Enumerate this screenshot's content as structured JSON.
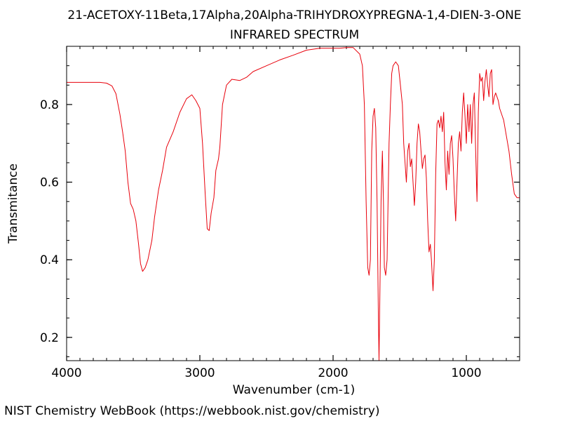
{
  "chart_data": {
    "type": "line",
    "title": "21-ACETOXY-11Beta,17Alpha,20Alpha-TRIHYDROXYPREGNA-1,4-DIEN-3-ONE",
    "subtitle": "INFRARED SPECTRUM",
    "xlabel": "Wavenumber (cm-1)",
    "ylabel": "Transmitance",
    "xlim": [
      4000,
      600
    ],
    "ylim": [
      0.14,
      0.95
    ],
    "x_ticks": [
      4000,
      3000,
      2000,
      1000
    ],
    "x_tick_labels": [
      "4000",
      "3000",
      "2000",
      "1000"
    ],
    "y_ticks": [
      0.2,
      0.4,
      0.6,
      0.8
    ],
    "y_tick_labels": [
      "0.2",
      "0.4",
      "0.6",
      "0.8"
    ],
    "grid": false,
    "line_color": "#e8000b",
    "series": [
      {
        "points": [
          [
            4000,
            0.857
          ],
          [
            3900,
            0.857
          ],
          [
            3800,
            0.857
          ],
          [
            3750,
            0.857
          ],
          [
            3700,
            0.855
          ],
          [
            3660,
            0.848
          ],
          [
            3630,
            0.828
          ],
          [
            3600,
            0.775
          ],
          [
            3580,
            0.73
          ],
          [
            3560,
            0.68
          ],
          [
            3540,
            0.6
          ],
          [
            3520,
            0.545
          ],
          [
            3500,
            0.53
          ],
          [
            3480,
            0.5
          ],
          [
            3460,
            0.44
          ],
          [
            3445,
            0.39
          ],
          [
            3430,
            0.37
          ],
          [
            3410,
            0.38
          ],
          [
            3390,
            0.4
          ],
          [
            3360,
            0.45
          ],
          [
            3340,
            0.51
          ],
          [
            3310,
            0.58
          ],
          [
            3280,
            0.63
          ],
          [
            3250,
            0.69
          ],
          [
            3200,
            0.73
          ],
          [
            3150,
            0.78
          ],
          [
            3100,
            0.815
          ],
          [
            3060,
            0.825
          ],
          [
            3030,
            0.81
          ],
          [
            3000,
            0.79
          ],
          [
            2980,
            0.7
          ],
          [
            2960,
            0.57
          ],
          [
            2945,
            0.48
          ],
          [
            2930,
            0.475
          ],
          [
            2915,
            0.52
          ],
          [
            2895,
            0.56
          ],
          [
            2880,
            0.63
          ],
          [
            2860,
            0.66
          ],
          [
            2850,
            0.69
          ],
          [
            2830,
            0.8
          ],
          [
            2800,
            0.85
          ],
          [
            2760,
            0.865
          ],
          [
            2700,
            0.862
          ],
          [
            2650,
            0.87
          ],
          [
            2600,
            0.885
          ],
          [
            2500,
            0.9
          ],
          [
            2400,
            0.915
          ],
          [
            2300,
            0.927
          ],
          [
            2200,
            0.94
          ],
          [
            2100,
            0.945
          ],
          [
            2000,
            0.945
          ],
          [
            1950,
            0.945
          ],
          [
            1900,
            0.947
          ],
          [
            1850,
            0.947
          ],
          [
            1800,
            0.93
          ],
          [
            1780,
            0.9
          ],
          [
            1765,
            0.8
          ],
          [
            1752,
            0.55
          ],
          [
            1740,
            0.38
          ],
          [
            1730,
            0.36
          ],
          [
            1720,
            0.4
          ],
          [
            1710,
            0.68
          ],
          [
            1700,
            0.77
          ],
          [
            1690,
            0.79
          ],
          [
            1680,
            0.74
          ],
          [
            1670,
            0.55
          ],
          [
            1660,
            0.25
          ],
          [
            1655,
            0.14
          ],
          [
            1650,
            0.28
          ],
          [
            1640,
            0.55
          ],
          [
            1630,
            0.68
          ],
          [
            1622,
            0.55
          ],
          [
            1615,
            0.38
          ],
          [
            1605,
            0.36
          ],
          [
            1595,
            0.4
          ],
          [
            1580,
            0.7
          ],
          [
            1570,
            0.8
          ],
          [
            1560,
            0.88
          ],
          [
            1550,
            0.9
          ],
          [
            1530,
            0.91
          ],
          [
            1510,
            0.9
          ],
          [
            1495,
            0.85
          ],
          [
            1480,
            0.8
          ],
          [
            1470,
            0.7
          ],
          [
            1460,
            0.65
          ],
          [
            1450,
            0.6
          ],
          [
            1440,
            0.68
          ],
          [
            1430,
            0.7
          ],
          [
            1420,
            0.64
          ],
          [
            1410,
            0.66
          ],
          [
            1400,
            0.6
          ],
          [
            1390,
            0.54
          ],
          [
            1380,
            0.6
          ],
          [
            1370,
            0.7
          ],
          [
            1360,
            0.75
          ],
          [
            1350,
            0.73
          ],
          [
            1340,
            0.68
          ],
          [
            1330,
            0.635
          ],
          [
            1320,
            0.66
          ],
          [
            1310,
            0.67
          ],
          [
            1300,
            0.61
          ],
          [
            1290,
            0.5
          ],
          [
            1280,
            0.42
          ],
          [
            1270,
            0.44
          ],
          [
            1262,
            0.4
          ],
          [
            1250,
            0.32
          ],
          [
            1240,
            0.4
          ],
          [
            1230,
            0.62
          ],
          [
            1220,
            0.75
          ],
          [
            1210,
            0.76
          ],
          [
            1200,
            0.74
          ],
          [
            1190,
            0.77
          ],
          [
            1180,
            0.73
          ],
          [
            1170,
            0.78
          ],
          [
            1160,
            0.65
          ],
          [
            1150,
            0.58
          ],
          [
            1140,
            0.68
          ],
          [
            1130,
            0.62
          ],
          [
            1120,
            0.7
          ],
          [
            1110,
            0.72
          ],
          [
            1100,
            0.66
          ],
          [
            1090,
            0.57
          ],
          [
            1080,
            0.5
          ],
          [
            1070,
            0.6
          ],
          [
            1060,
            0.7
          ],
          [
            1050,
            0.73
          ],
          [
            1040,
            0.68
          ],
          [
            1030,
            0.78
          ],
          [
            1020,
            0.83
          ],
          [
            1010,
            0.77
          ],
          [
            1000,
            0.7
          ],
          [
            990,
            0.8
          ],
          [
            980,
            0.73
          ],
          [
            970,
            0.8
          ],
          [
            960,
            0.7
          ],
          [
            950,
            0.8
          ],
          [
            940,
            0.83
          ],
          [
            930,
            0.68
          ],
          [
            920,
            0.55
          ],
          [
            910,
            0.78
          ],
          [
            900,
            0.88
          ],
          [
            890,
            0.86
          ],
          [
            880,
            0.87
          ],
          [
            870,
            0.81
          ],
          [
            860,
            0.86
          ],
          [
            850,
            0.89
          ],
          [
            840,
            0.85
          ],
          [
            830,
            0.82
          ],
          [
            820,
            0.88
          ],
          [
            810,
            0.89
          ],
          [
            800,
            0.8
          ],
          [
            790,
            0.82
          ],
          [
            780,
            0.83
          ],
          [
            770,
            0.82
          ],
          [
            760,
            0.81
          ],
          [
            750,
            0.79
          ],
          [
            740,
            0.78
          ],
          [
            730,
            0.77
          ],
          [
            720,
            0.76
          ],
          [
            700,
            0.72
          ],
          [
            680,
            0.68
          ],
          [
            660,
            0.62
          ],
          [
            640,
            0.57
          ],
          [
            620,
            0.56
          ],
          [
            600,
            0.56
          ]
        ]
      }
    ]
  },
  "footer": {
    "credit": "NIST Chemistry WebBook (https://webbook.nist.gov/chemistry)"
  }
}
